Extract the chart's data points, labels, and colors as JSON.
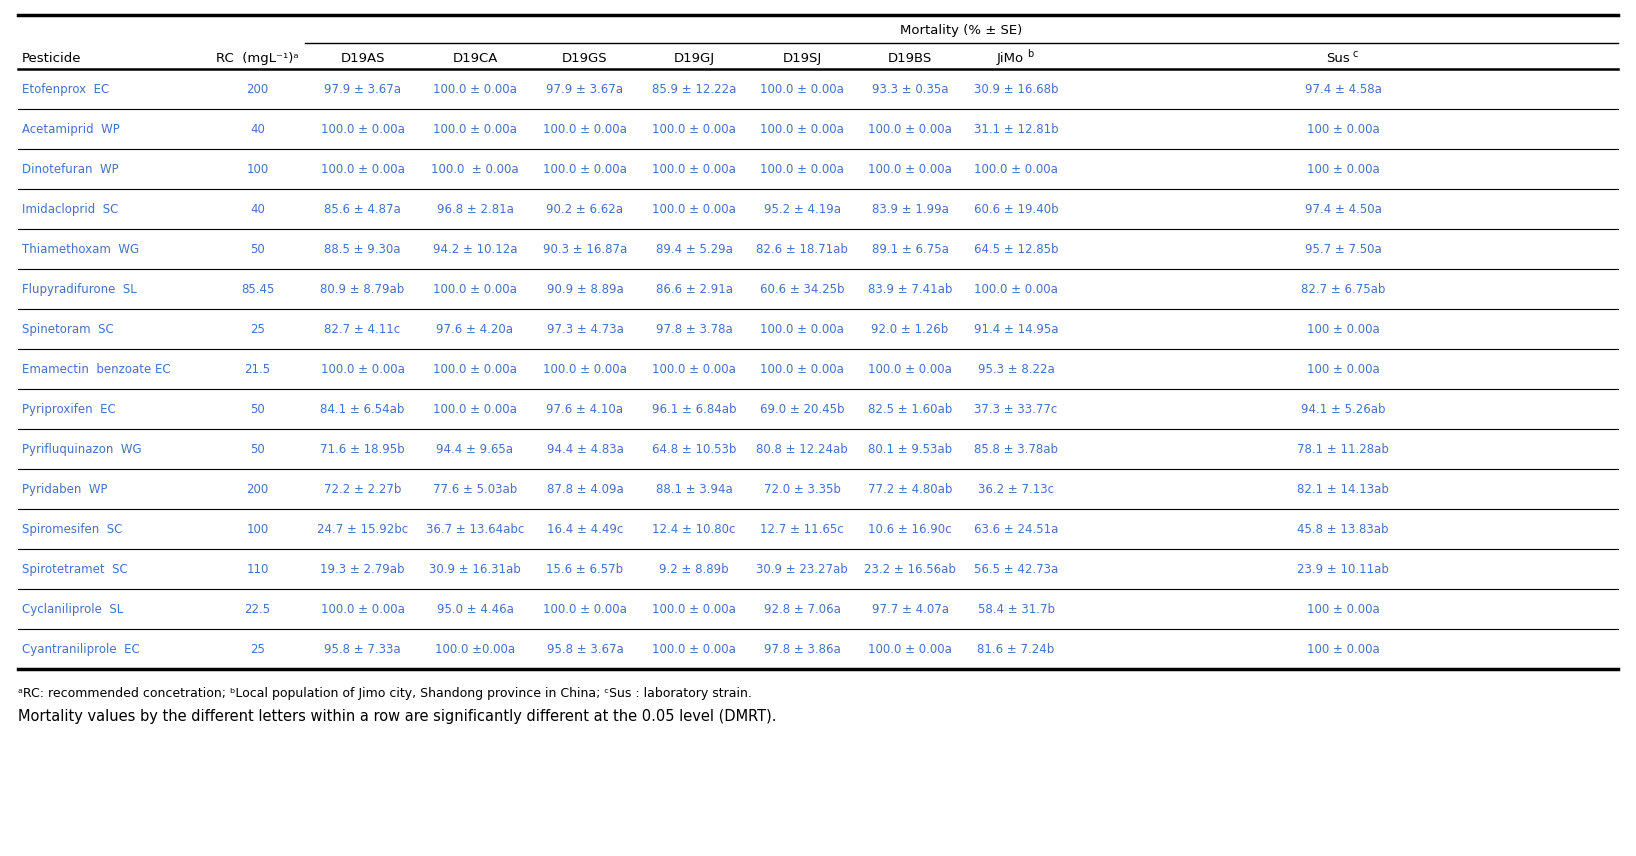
{
  "title": "Mortality (% ± SE)",
  "rows": [
    [
      "Etofenprox  EC",
      "200",
      "97.9 ± 3.67a",
      "100.0 ± 0.00a",
      "97.9 ± 3.67a",
      "85.9 ± 12.22a",
      "100.0 ± 0.00a",
      "93.3 ± 0.35a",
      "30.9 ± 16.68b",
      "97.4 ± 4.58a"
    ],
    [
      "Acetamiprid  WP",
      "40",
      "100.0 ± 0.00a",
      "100.0 ± 0.00a",
      "100.0 ± 0.00a",
      "100.0 ± 0.00a",
      "100.0 ± 0.00a",
      "100.0 ± 0.00a",
      "31.1 ± 12.81b",
      "100 ± 0.00a"
    ],
    [
      "Dinotefuran  WP",
      "100",
      "100.0 ± 0.00a",
      "100.0  ± 0.00a",
      "100.0 ± 0.00a",
      "100.0 ± 0.00a",
      "100.0 ± 0.00a",
      "100.0 ± 0.00a",
      "100.0 ± 0.00a",
      "100 ± 0.00a"
    ],
    [
      "Imidacloprid  SC",
      "40",
      "85.6 ± 4.87a",
      "96.8 ± 2.81a",
      "90.2 ± 6.62a",
      "100.0 ± 0.00a",
      "95.2 ± 4.19a",
      "83.9 ± 1.99a",
      "60.6 ± 19.40b",
      "97.4 ± 4.50a"
    ],
    [
      "Thiamethoxam  WG",
      "50",
      "88.5 ± 9.30a",
      "94.2 ± 10.12a",
      "90.3 ± 16.87a",
      "89.4 ± 5.29a",
      "82.6 ± 18.71ab",
      "89.1 ± 6.75a",
      "64.5 ± 12.85b",
      "95.7 ± 7.50a"
    ],
    [
      "Flupyradifurone  SL",
      "85.45",
      "80.9 ± 8.79ab",
      "100.0 ± 0.00a",
      "90.9 ± 8.89a",
      "86.6 ± 2.91a",
      "60.6 ± 34.25b",
      "83.9 ± 7.41ab",
      "100.0 ± 0.00a",
      "82.7 ± 6.75ab"
    ],
    [
      "Spinetoram  SC",
      "25",
      "82.7 ± 4.11c",
      "97.6 ± 4.20a",
      "97.3 ± 4.73a",
      "97.8 ± 3.78a",
      "100.0 ± 0.00a",
      "92.0 ± 1.26b",
      "91.4 ± 14.95a",
      "100 ± 0.00a"
    ],
    [
      "Emamectin  benzoate EC",
      "21.5",
      "100.0 ± 0.00a",
      "100.0 ± 0.00a",
      "100.0 ± 0.00a",
      "100.0 ± 0.00a",
      "100.0 ± 0.00a",
      "100.0 ± 0.00a",
      "95.3 ± 8.22a",
      "100 ± 0.00a"
    ],
    [
      "Pyriproxifen  EC",
      "50",
      "84.1 ± 6.54ab",
      "100.0 ± 0.00a",
      "97.6 ± 4.10a",
      "96.1 ± 6.84ab",
      "69.0 ± 20.45b",
      "82.5 ± 1.60ab",
      "37.3 ± 33.77c",
      "94.1 ± 5.26ab"
    ],
    [
      "Pyrifluquinazon  WG",
      "50",
      "71.6 ± 18.95b",
      "94.4 ± 9.65a",
      "94.4 ± 4.83a",
      "64.8 ± 10.53b",
      "80.8 ± 12.24ab",
      "80.1 ± 9.53ab",
      "85.8 ± 3.78ab",
      "78.1 ± 11.28ab"
    ],
    [
      "Pyridaben  WP",
      "200",
      "72.2 ± 2.27b",
      "77.6 ± 5.03ab",
      "87.8 ± 4.09a",
      "88.1 ± 3.94a",
      "72.0 ± 3.35b",
      "77.2 ± 4.80ab",
      "36.2 ± 7.13c",
      "82.1 ± 14.13ab"
    ],
    [
      "Spiromesifen  SC",
      "100",
      "24.7 ± 15.92bc",
      "36.7 ± 13.64abc",
      "16.4 ± 4.49c",
      "12.4 ± 10.80c",
      "12.7 ± 11.65c",
      "10.6 ± 16.90c",
      "63.6 ± 24.51a",
      "45.8 ± 13.83ab"
    ],
    [
      "Spirotetramet  SC",
      "110",
      "19.3 ± 2.79ab",
      "30.9 ± 16.31ab",
      "15.6 ± 6.57b",
      "9.2 ± 8.89b",
      "30.9 ± 23.27ab",
      "23.2 ± 16.56ab",
      "56.5 ± 42.73a",
      "23.9 ± 10.11ab"
    ],
    [
      "Cyclaniliprole  SL",
      "22.5",
      "100.0 ± 0.00a",
      "95.0 ± 4.46a",
      "100.0 ± 0.00a",
      "100.0 ± 0.00a",
      "92.8 ± 7.06a",
      "97.7 ± 4.07a",
      "58.4 ± 31.7b",
      "100 ± 0.00a"
    ],
    [
      "Cyantraniliprole  EC",
      "25",
      "95.8 ± 7.33a",
      "100.0 ±0.00a",
      "95.8 ± 3.67a",
      "100.0 ± 0.00a",
      "97.8 ± 3.86a",
      "100.0 ± 0.00a",
      "81.6 ± 7.24b",
      "100 ± 0.00a"
    ]
  ],
  "footnote1": "ᵃRC: recommended concetration; ᵇLocal population of Jimo city, Shandong province in China; ᶜSus : laboratory strain.",
  "footnote2": "Mortality values by the different letters within a row are significantly different at the 0.05 level (DMRT).",
  "text_color": "#4472C4",
  "header_color": "#000000",
  "bg_color": "#FFFFFF",
  "data_font_size": 8.5,
  "header_font_size": 9.5,
  "footnote1_font_size": 9.0,
  "footnote2_font_size": 10.5
}
